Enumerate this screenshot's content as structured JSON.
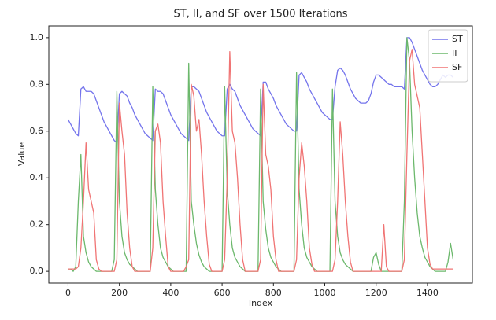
{
  "chart_data": {
    "type": "line",
    "title": "ST, II, and SF over 1500 Iterations",
    "x_label": "Index",
    "y_label": "Value",
    "x": [
      0,
      10,
      20,
      30,
      40,
      50,
      60,
      70,
      80,
      90,
      100,
      110,
      120,
      130,
      140,
      150,
      160,
      170,
      180,
      190,
      200,
      210,
      220,
      230,
      240,
      250,
      260,
      270,
      280,
      290,
      300,
      310,
      320,
      330,
      340,
      350,
      360,
      370,
      380,
      390,
      400,
      410,
      420,
      430,
      440,
      450,
      460,
      470,
      480,
      490,
      500,
      510,
      520,
      530,
      540,
      550,
      560,
      570,
      580,
      590,
      600,
      610,
      620,
      630,
      640,
      650,
      660,
      670,
      680,
      690,
      700,
      710,
      720,
      730,
      740,
      750,
      760,
      770,
      780,
      790,
      800,
      810,
      820,
      830,
      840,
      850,
      860,
      870,
      880,
      890,
      900,
      910,
      920,
      930,
      940,
      950,
      960,
      970,
      980,
      990,
      1000,
      1010,
      1020,
      1030,
      1040,
      1050,
      1060,
      1070,
      1080,
      1090,
      1100,
      1110,
      1120,
      1130,
      1140,
      1150,
      1160,
      1170,
      1180,
      1190,
      1200,
      1210,
      1220,
      1230,
      1240,
      1250,
      1260,
      1270,
      1280,
      1290,
      1300,
      1310,
      1320,
      1330,
      1340,
      1350,
      1360,
      1370,
      1380,
      1390,
      1400,
      1410,
      1420,
      1430,
      1440,
      1450,
      1460,
      1470,
      1480,
      1490,
      1500
    ],
    "series": [
      {
        "name": "ST",
        "color": "#7474ec",
        "values": [
          0.65,
          0.63,
          0.61,
          0.59,
          0.58,
          0.78,
          0.79,
          0.77,
          0.77,
          0.77,
          0.76,
          0.73,
          0.7,
          0.67,
          0.64,
          0.62,
          0.6,
          0.58,
          0.56,
          0.55,
          0.76,
          0.77,
          0.76,
          0.75,
          0.72,
          0.7,
          0.67,
          0.65,
          0.63,
          0.61,
          0.59,
          0.58,
          0.57,
          0.56,
          0.78,
          0.77,
          0.77,
          0.76,
          0.73,
          0.7,
          0.67,
          0.65,
          0.63,
          0.61,
          0.59,
          0.58,
          0.57,
          0.56,
          0.79,
          0.79,
          0.78,
          0.77,
          0.74,
          0.71,
          0.68,
          0.66,
          0.64,
          0.62,
          0.6,
          0.59,
          0.58,
          0.58,
          0.78,
          0.8,
          0.78,
          0.77,
          0.74,
          0.71,
          0.69,
          0.67,
          0.65,
          0.63,
          0.61,
          0.6,
          0.59,
          0.58,
          0.81,
          0.81,
          0.78,
          0.76,
          0.74,
          0.71,
          0.69,
          0.67,
          0.65,
          0.63,
          0.62,
          0.61,
          0.6,
          0.6,
          0.84,
          0.85,
          0.83,
          0.81,
          0.78,
          0.76,
          0.74,
          0.72,
          0.7,
          0.68,
          0.67,
          0.66,
          0.65,
          0.65,
          0.79,
          0.86,
          0.87,
          0.86,
          0.84,
          0.81,
          0.78,
          0.76,
          0.74,
          0.73,
          0.72,
          0.72,
          0.72,
          0.73,
          0.76,
          0.81,
          0.84,
          0.84,
          0.83,
          0.82,
          0.81,
          0.8,
          0.8,
          0.79,
          0.79,
          0.79,
          0.79,
          0.78,
          1.0,
          1.0,
          0.98,
          0.95,
          0.92,
          0.89,
          0.86,
          0.84,
          0.82,
          0.8,
          0.79,
          0.79,
          0.8,
          0.82,
          0.84,
          0.83,
          0.84,
          0.84,
          0.83
        ]
      },
      {
        "name": "II",
        "color": "#6cb86c",
        "values": [
          0.01,
          0.01,
          0,
          0.02,
          0.3,
          0.5,
          0.15,
          0.08,
          0.04,
          0.02,
          0.01,
          0,
          0,
          0,
          0,
          0,
          0,
          0,
          0.05,
          0.77,
          0.3,
          0.15,
          0.08,
          0.05,
          0.03,
          0.02,
          0.01,
          0,
          0,
          0,
          0,
          0,
          0,
          0.79,
          0.35,
          0.2,
          0.1,
          0.06,
          0.04,
          0.02,
          0.01,
          0,
          0,
          0,
          0,
          0,
          0,
          0.89,
          0.3,
          0.2,
          0.12,
          0.07,
          0.04,
          0.02,
          0.01,
          0,
          0,
          0,
          0,
          0,
          0,
          0.79,
          0.35,
          0.2,
          0.1,
          0.06,
          0.04,
          0.02,
          0.01,
          0,
          0,
          0,
          0,
          0,
          0,
          0.78,
          0.3,
          0.18,
          0.1,
          0.06,
          0.04,
          0.02,
          0.01,
          0,
          0,
          0,
          0,
          0,
          0,
          0.85,
          0.35,
          0.2,
          0.1,
          0.06,
          0.04,
          0.02,
          0.01,
          0,
          0,
          0,
          0,
          0,
          0,
          0.78,
          0.3,
          0.15,
          0.08,
          0.05,
          0.03,
          0.02,
          0.01,
          0,
          0,
          0,
          0,
          0,
          0,
          0,
          0,
          0.06,
          0.08,
          0.03,
          0,
          0,
          0,
          0,
          0,
          0,
          0,
          0,
          0,
          0.3,
          1.0,
          0.9,
          0.6,
          0.4,
          0.25,
          0.15,
          0.1,
          0.06,
          0.04,
          0.02,
          0.01,
          0,
          0,
          0,
          0,
          0,
          0.04,
          0.12,
          0.05
        ]
      },
      {
        "name": "SF",
        "color": "#f07474",
        "values": [
          0.01,
          0.01,
          0.01,
          0.01,
          0.02,
          0.1,
          0.3,
          0.55,
          0.35,
          0.3,
          0.25,
          0.05,
          0.01,
          0,
          0,
          0,
          0,
          0,
          0,
          0.05,
          0.72,
          0.6,
          0.5,
          0.25,
          0.1,
          0.02,
          0,
          0,
          0,
          0,
          0,
          0,
          0,
          0.1,
          0.6,
          0.63,
          0.55,
          0.3,
          0.15,
          0.02,
          0,
          0,
          0,
          0,
          0,
          0,
          0.02,
          0.05,
          0.8,
          0.75,
          0.6,
          0.65,
          0.5,
          0.3,
          0.15,
          0.03,
          0,
          0,
          0,
          0,
          0,
          0.05,
          0.4,
          0.94,
          0.6,
          0.55,
          0.4,
          0.2,
          0.05,
          0,
          0,
          0,
          0,
          0,
          0,
          0.05,
          0.8,
          0.5,
          0.45,
          0.35,
          0.15,
          0.05,
          0,
          0,
          0,
          0,
          0,
          0,
          0,
          0.05,
          0.4,
          0.55,
          0.45,
          0.3,
          0.1,
          0.03,
          0,
          0,
          0,
          0,
          0,
          0,
          0,
          0,
          0.05,
          0.3,
          0.64,
          0.5,
          0.3,
          0.15,
          0.04,
          0,
          0,
          0,
          0,
          0,
          0,
          0,
          0,
          0,
          0,
          0,
          0,
          0.2,
          0.02,
          0,
          0,
          0,
          0,
          0,
          0,
          0.05,
          0.5,
          0.9,
          0.95,
          0.8,
          0.75,
          0.7,
          0.5,
          0.3,
          0.1,
          0.03,
          0.01,
          0.01,
          0.01,
          0.01,
          0.01,
          0.01,
          0.01,
          0.01,
          0.01
        ]
      }
    ],
    "xlim": [
      -75,
      1575
    ],
    "ylim": [
      -0.05,
      1.05
    ],
    "xticks": [
      0,
      200,
      400,
      600,
      800,
      1000,
      1200,
      1400
    ],
    "yticks": [
      {
        "value": 0.0,
        "label": "0.0"
      },
      0.2,
      0.4,
      0.6,
      0.8,
      {
        "value": 1.0,
        "label": "1.0"
      }
    ],
    "legend": "upper right",
    "grid": false
  }
}
